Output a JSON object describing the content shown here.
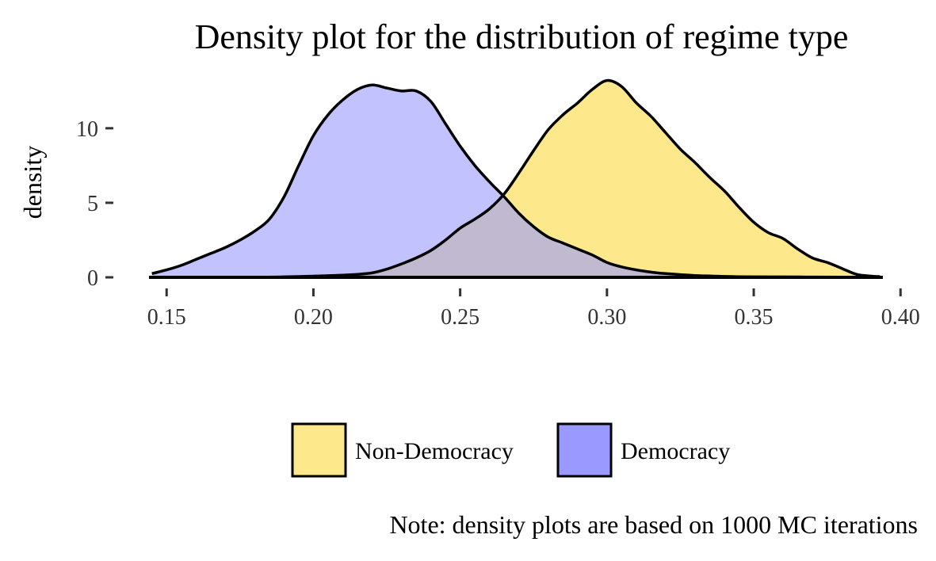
{
  "chart_data": {
    "type": "area",
    "subtype": "density",
    "title": "Density plot for the distribution of regime type",
    "xlabel": "",
    "ylabel": "density",
    "xlim": [
      0.144,
      0.394
    ],
    "ylim": [
      0,
      13.5
    ],
    "x_ticks": [
      0.15,
      0.2,
      0.25,
      0.3,
      0.35,
      0.4
    ],
    "x_tick_labels": [
      "0.15",
      "0.20",
      "0.25",
      "0.30",
      "0.35",
      "0.40"
    ],
    "y_ticks": [
      0,
      5,
      10
    ],
    "y_tick_labels": [
      "0",
      "5",
      "10"
    ],
    "grid": false,
    "legend_position": "bottom",
    "series": [
      {
        "name": "Non-Democracy",
        "color": "#fde88b",
        "points": [
          [
            0.145,
            0.0
          ],
          [
            0.18,
            0.01
          ],
          [
            0.19,
            0.03
          ],
          [
            0.2,
            0.08
          ],
          [
            0.21,
            0.15
          ],
          [
            0.215,
            0.2
          ],
          [
            0.22,
            0.3
          ],
          [
            0.225,
            0.55
          ],
          [
            0.23,
            0.9
          ],
          [
            0.235,
            1.3
          ],
          [
            0.24,
            1.8
          ],
          [
            0.245,
            2.5
          ],
          [
            0.25,
            3.3
          ],
          [
            0.255,
            3.9
          ],
          [
            0.26,
            4.6
          ],
          [
            0.265,
            5.6
          ],
          [
            0.27,
            7.0
          ],
          [
            0.275,
            8.5
          ],
          [
            0.28,
            9.9
          ],
          [
            0.285,
            10.9
          ],
          [
            0.29,
            11.7
          ],
          [
            0.295,
            12.6
          ],
          [
            0.3,
            13.2
          ],
          [
            0.305,
            12.8
          ],
          [
            0.31,
            11.7
          ],
          [
            0.315,
            10.8
          ],
          [
            0.32,
            9.7
          ],
          [
            0.325,
            8.6
          ],
          [
            0.33,
            7.7
          ],
          [
            0.335,
            6.7
          ],
          [
            0.34,
            5.8
          ],
          [
            0.345,
            4.7
          ],
          [
            0.35,
            3.7
          ],
          [
            0.355,
            3.0
          ],
          [
            0.36,
            2.6
          ],
          [
            0.365,
            1.9
          ],
          [
            0.37,
            1.3
          ],
          [
            0.375,
            1.0
          ],
          [
            0.38,
            0.6
          ],
          [
            0.385,
            0.2
          ],
          [
            0.39,
            0.08
          ],
          [
            0.393,
            0.05
          ]
        ]
      },
      {
        "name": "Democracy",
        "color": "#9999ff",
        "points": [
          [
            0.145,
            0.25
          ],
          [
            0.15,
            0.5
          ],
          [
            0.155,
            0.8
          ],
          [
            0.16,
            1.2
          ],
          [
            0.165,
            1.6
          ],
          [
            0.17,
            2.0
          ],
          [
            0.175,
            2.5
          ],
          [
            0.18,
            3.1
          ],
          [
            0.185,
            3.9
          ],
          [
            0.19,
            5.4
          ],
          [
            0.195,
            7.5
          ],
          [
            0.2,
            9.5
          ],
          [
            0.205,
            10.9
          ],
          [
            0.21,
            11.9
          ],
          [
            0.215,
            12.6
          ],
          [
            0.22,
            12.9
          ],
          [
            0.225,
            12.7
          ],
          [
            0.23,
            12.5
          ],
          [
            0.235,
            12.5
          ],
          [
            0.24,
            11.8
          ],
          [
            0.245,
            10.3
          ],
          [
            0.25,
            8.8
          ],
          [
            0.255,
            7.5
          ],
          [
            0.26,
            6.4
          ],
          [
            0.265,
            5.4
          ],
          [
            0.27,
            4.3
          ],
          [
            0.275,
            3.4
          ],
          [
            0.28,
            2.7
          ],
          [
            0.285,
            2.3
          ],
          [
            0.29,
            1.9
          ],
          [
            0.295,
            1.5
          ],
          [
            0.3,
            1.0
          ],
          [
            0.305,
            0.7
          ],
          [
            0.31,
            0.5
          ],
          [
            0.315,
            0.35
          ],
          [
            0.32,
            0.25
          ],
          [
            0.33,
            0.12
          ],
          [
            0.34,
            0.06
          ],
          [
            0.35,
            0.03
          ],
          [
            0.37,
            0.02
          ],
          [
            0.393,
            0.0
          ]
        ]
      }
    ],
    "legend": [
      "Non-Democracy",
      "Democracy"
    ],
    "overlap_color": "#9a91c6",
    "outline_color": "#000000"
  },
  "note": "Note: density plots are based on 1000 MC iterations"
}
